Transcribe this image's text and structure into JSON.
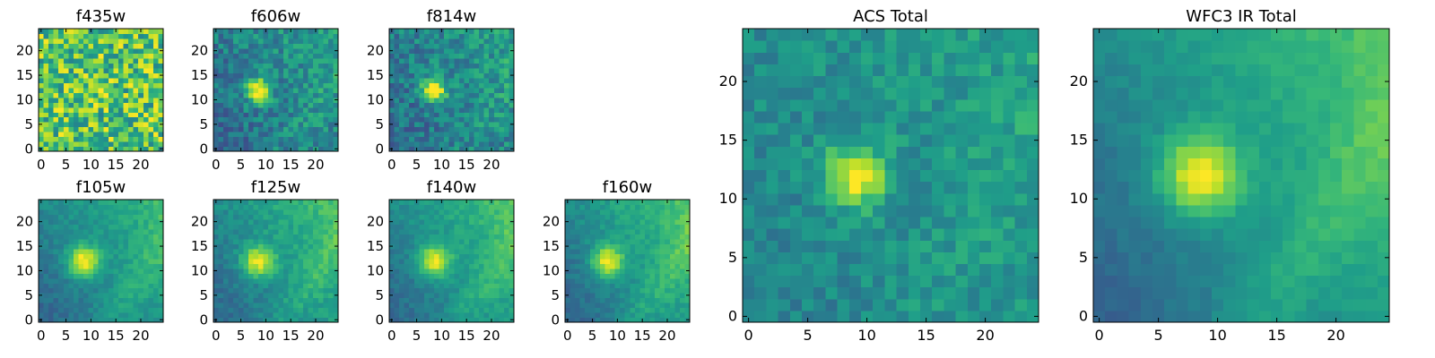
{
  "chart_data": [
    {
      "type": "heatmap",
      "title": "f435w",
      "size": 25,
      "xlim": [
        0,
        24
      ],
      "ylim": [
        0,
        24
      ],
      "xticks": [
        0,
        5,
        10,
        15,
        20
      ],
      "yticks": [
        0,
        5,
        10,
        15,
        20
      ],
      "colormap": "viridis",
      "source": {
        "x": 9,
        "y": 12,
        "peak": 0.1,
        "radius": 2
      },
      "background": 0.72,
      "noise": 0.28,
      "gradient": 0.0
    },
    {
      "type": "heatmap",
      "title": "f606w",
      "size": 25,
      "xlim": [
        0,
        24
      ],
      "ylim": [
        0,
        24
      ],
      "xticks": [
        0,
        5,
        10,
        15,
        20
      ],
      "yticks": [
        0,
        5,
        10,
        15,
        20
      ],
      "colormap": "viridis",
      "source": {
        "x": 8.5,
        "y": 12,
        "peak": 0.6,
        "radius": 1.7
      },
      "background": 0.45,
      "noise": 0.15,
      "gradient": 0.2
    },
    {
      "type": "heatmap",
      "title": "f814w",
      "size": 25,
      "xlim": [
        0,
        24
      ],
      "ylim": [
        0,
        24
      ],
      "xticks": [
        0,
        5,
        10,
        15,
        20
      ],
      "yticks": [
        0,
        5,
        10,
        15,
        20
      ],
      "colormap": "viridis",
      "source": {
        "x": 8.5,
        "y": 12,
        "peak": 0.6,
        "radius": 1.7
      },
      "background": 0.45,
      "noise": 0.15,
      "gradient": 0.22
    },
    {
      "type": "heatmap",
      "title": "f105w",
      "size": 25,
      "xlim": [
        0,
        24
      ],
      "ylim": [
        0,
        24
      ],
      "xticks": [
        0,
        5,
        10,
        15,
        20
      ],
      "yticks": [
        0,
        5,
        10,
        15,
        20
      ],
      "colormap": "viridis",
      "source": {
        "x": 8.5,
        "y": 12,
        "peak": 0.55,
        "radius": 2.2
      },
      "background": 0.5,
      "noise": 0.06,
      "gradient": 0.35
    },
    {
      "type": "heatmap",
      "title": "f125w",
      "size": 25,
      "xlim": [
        0,
        24
      ],
      "ylim": [
        0,
        24
      ],
      "xticks": [
        0,
        5,
        10,
        15,
        20
      ],
      "yticks": [
        0,
        5,
        10,
        15,
        20
      ],
      "colormap": "viridis",
      "source": {
        "x": 8.5,
        "y": 12,
        "peak": 0.5,
        "radius": 2.2
      },
      "background": 0.52,
      "noise": 0.07,
      "gradient": 0.38
    },
    {
      "type": "heatmap",
      "title": "f140w",
      "size": 25,
      "xlim": [
        0,
        24
      ],
      "ylim": [
        0,
        24
      ],
      "xticks": [
        0,
        5,
        10,
        15,
        20
      ],
      "yticks": [
        0,
        5,
        10,
        15,
        20
      ],
      "colormap": "viridis",
      "source": {
        "x": 8.5,
        "y": 12,
        "peak": 0.5,
        "radius": 2.2
      },
      "background": 0.52,
      "noise": 0.06,
      "gradient": 0.4
    },
    {
      "type": "heatmap",
      "title": "f160w",
      "size": 25,
      "xlim": [
        0,
        24
      ],
      "ylim": [
        0,
        24
      ],
      "xticks": [
        0,
        5,
        10,
        15,
        20
      ],
      "yticks": [
        0,
        5,
        10,
        15,
        20
      ],
      "colormap": "viridis",
      "source": {
        "x": 8,
        "y": 12,
        "peak": 0.5,
        "radius": 2.2
      },
      "background": 0.52,
      "noise": 0.06,
      "gradient": 0.42
    },
    {
      "type": "heatmap",
      "title": "ACS Total",
      "size": 25,
      "xlim": [
        0,
        24
      ],
      "ylim": [
        0,
        24
      ],
      "xticks": [
        0,
        5,
        10,
        15,
        20
      ],
      "yticks": [
        0,
        5,
        10,
        15,
        20
      ],
      "colormap": "viridis",
      "source": {
        "x": 9,
        "y": 12,
        "peak": 0.5,
        "radius": 1.8
      },
      "background": 0.5,
      "noise": 0.1,
      "gradient": 0.15
    },
    {
      "type": "heatmap",
      "title": "WFC3 IR Total",
      "size": 25,
      "xlim": [
        0,
        24
      ],
      "ylim": [
        0,
        24
      ],
      "xticks": [
        0,
        5,
        10,
        15,
        20
      ],
      "yticks": [
        0,
        5,
        10,
        15,
        20
      ],
      "colormap": "viridis",
      "source": {
        "x": 8.5,
        "y": 12,
        "peak": 0.5,
        "radius": 2.4
      },
      "background": 0.52,
      "noise": 0.04,
      "gradient": 0.42
    }
  ]
}
